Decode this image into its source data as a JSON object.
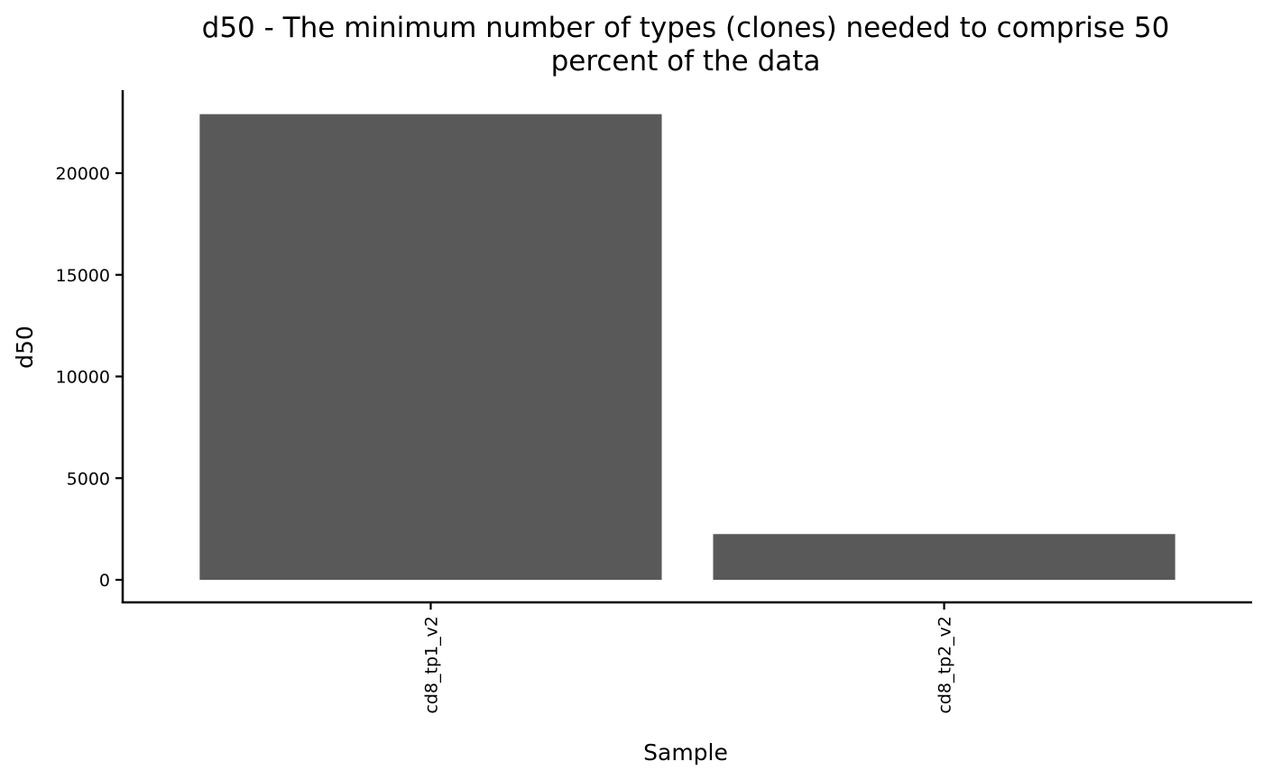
{
  "chart_data": {
    "type": "bar",
    "title_lines": [
      "d50 - The minimum number of types (clones) needed to comprise 50",
      "percent of the data"
    ],
    "xlabel": "Sample",
    "ylabel": "d50",
    "categories": [
      "cd8_tp1_v2",
      "cd8_tp2_v2"
    ],
    "values": [
      22900,
      2250
    ],
    "ylim": [
      0,
      23000
    ],
    "yticks": [
      0,
      5000,
      10000,
      15000,
      20000
    ],
    "ytick_labels": [
      "0",
      "5000",
      "10000",
      "15000",
      "20000"
    ],
    "bar_color": "#595959",
    "grid": false
  }
}
